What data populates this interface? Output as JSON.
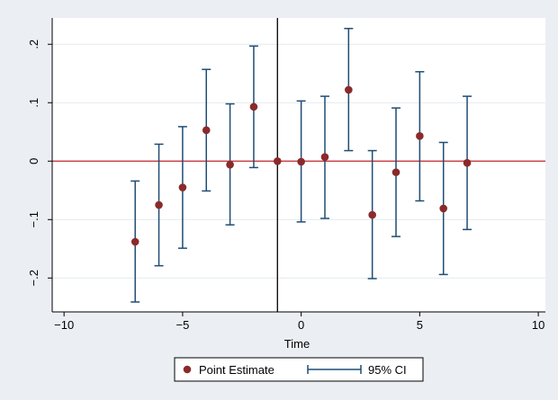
{
  "chart_data": {
    "type": "scatter",
    "xlabel": "Time",
    "ylabel": "",
    "xlim": [
      -10.5,
      10.3
    ],
    "ylim": [
      -0.258,
      0.245
    ],
    "xticks": [
      -10,
      -5,
      0,
      5,
      10
    ],
    "xtick_labels": [
      "−10",
      "−5",
      "0",
      "5",
      "10"
    ],
    "yticks": [
      -0.2,
      -0.1,
      0,
      0.1,
      0.2
    ],
    "ytick_labels": [
      "−.2",
      "−.1",
      "0",
      ".1",
      ".2"
    ],
    "grid": true,
    "reference_lines": {
      "horizontal_y": 0,
      "vertical_x": -1
    },
    "legend_position": "bottom",
    "series": [
      {
        "name": "Point Estimate",
        "kind": "point",
        "x": [
          -7,
          -6,
          -5,
          -4,
          -3,
          -2,
          -1,
          0,
          1,
          2,
          3,
          4,
          5,
          6,
          7
        ],
        "y": [
          -0.138,
          -0.075,
          -0.045,
          0.053,
          -0.006,
          0.093,
          0.0,
          -0.001,
          0.007,
          0.122,
          -0.092,
          -0.019,
          0.043,
          -0.081,
          -0.003
        ]
      },
      {
        "name": "95% CI",
        "kind": "error_bar",
        "x": [
          -7,
          -6,
          -5,
          -4,
          -3,
          -2,
          0,
          1,
          2,
          3,
          4,
          5,
          6,
          7
        ],
        "low": [
          -0.241,
          -0.179,
          -0.149,
          -0.051,
          -0.109,
          -0.011,
          -0.104,
          -0.098,
          0.018,
          -0.201,
          -0.129,
          -0.068,
          -0.194,
          -0.117
        ],
        "high": [
          -0.034,
          0.029,
          0.059,
          0.157,
          0.098,
          0.197,
          0.103,
          0.111,
          0.227,
          0.018,
          0.091,
          0.153,
          0.032,
          0.111
        ]
      }
    ]
  },
  "colors": {
    "background": "#ebeef3",
    "plot_background": "#ffffff",
    "point": "#8b2a2a",
    "ci": "#1f4d75",
    "zero_line": "#c0272d",
    "event_line": "#000000",
    "grid": "#e4e9ef"
  }
}
